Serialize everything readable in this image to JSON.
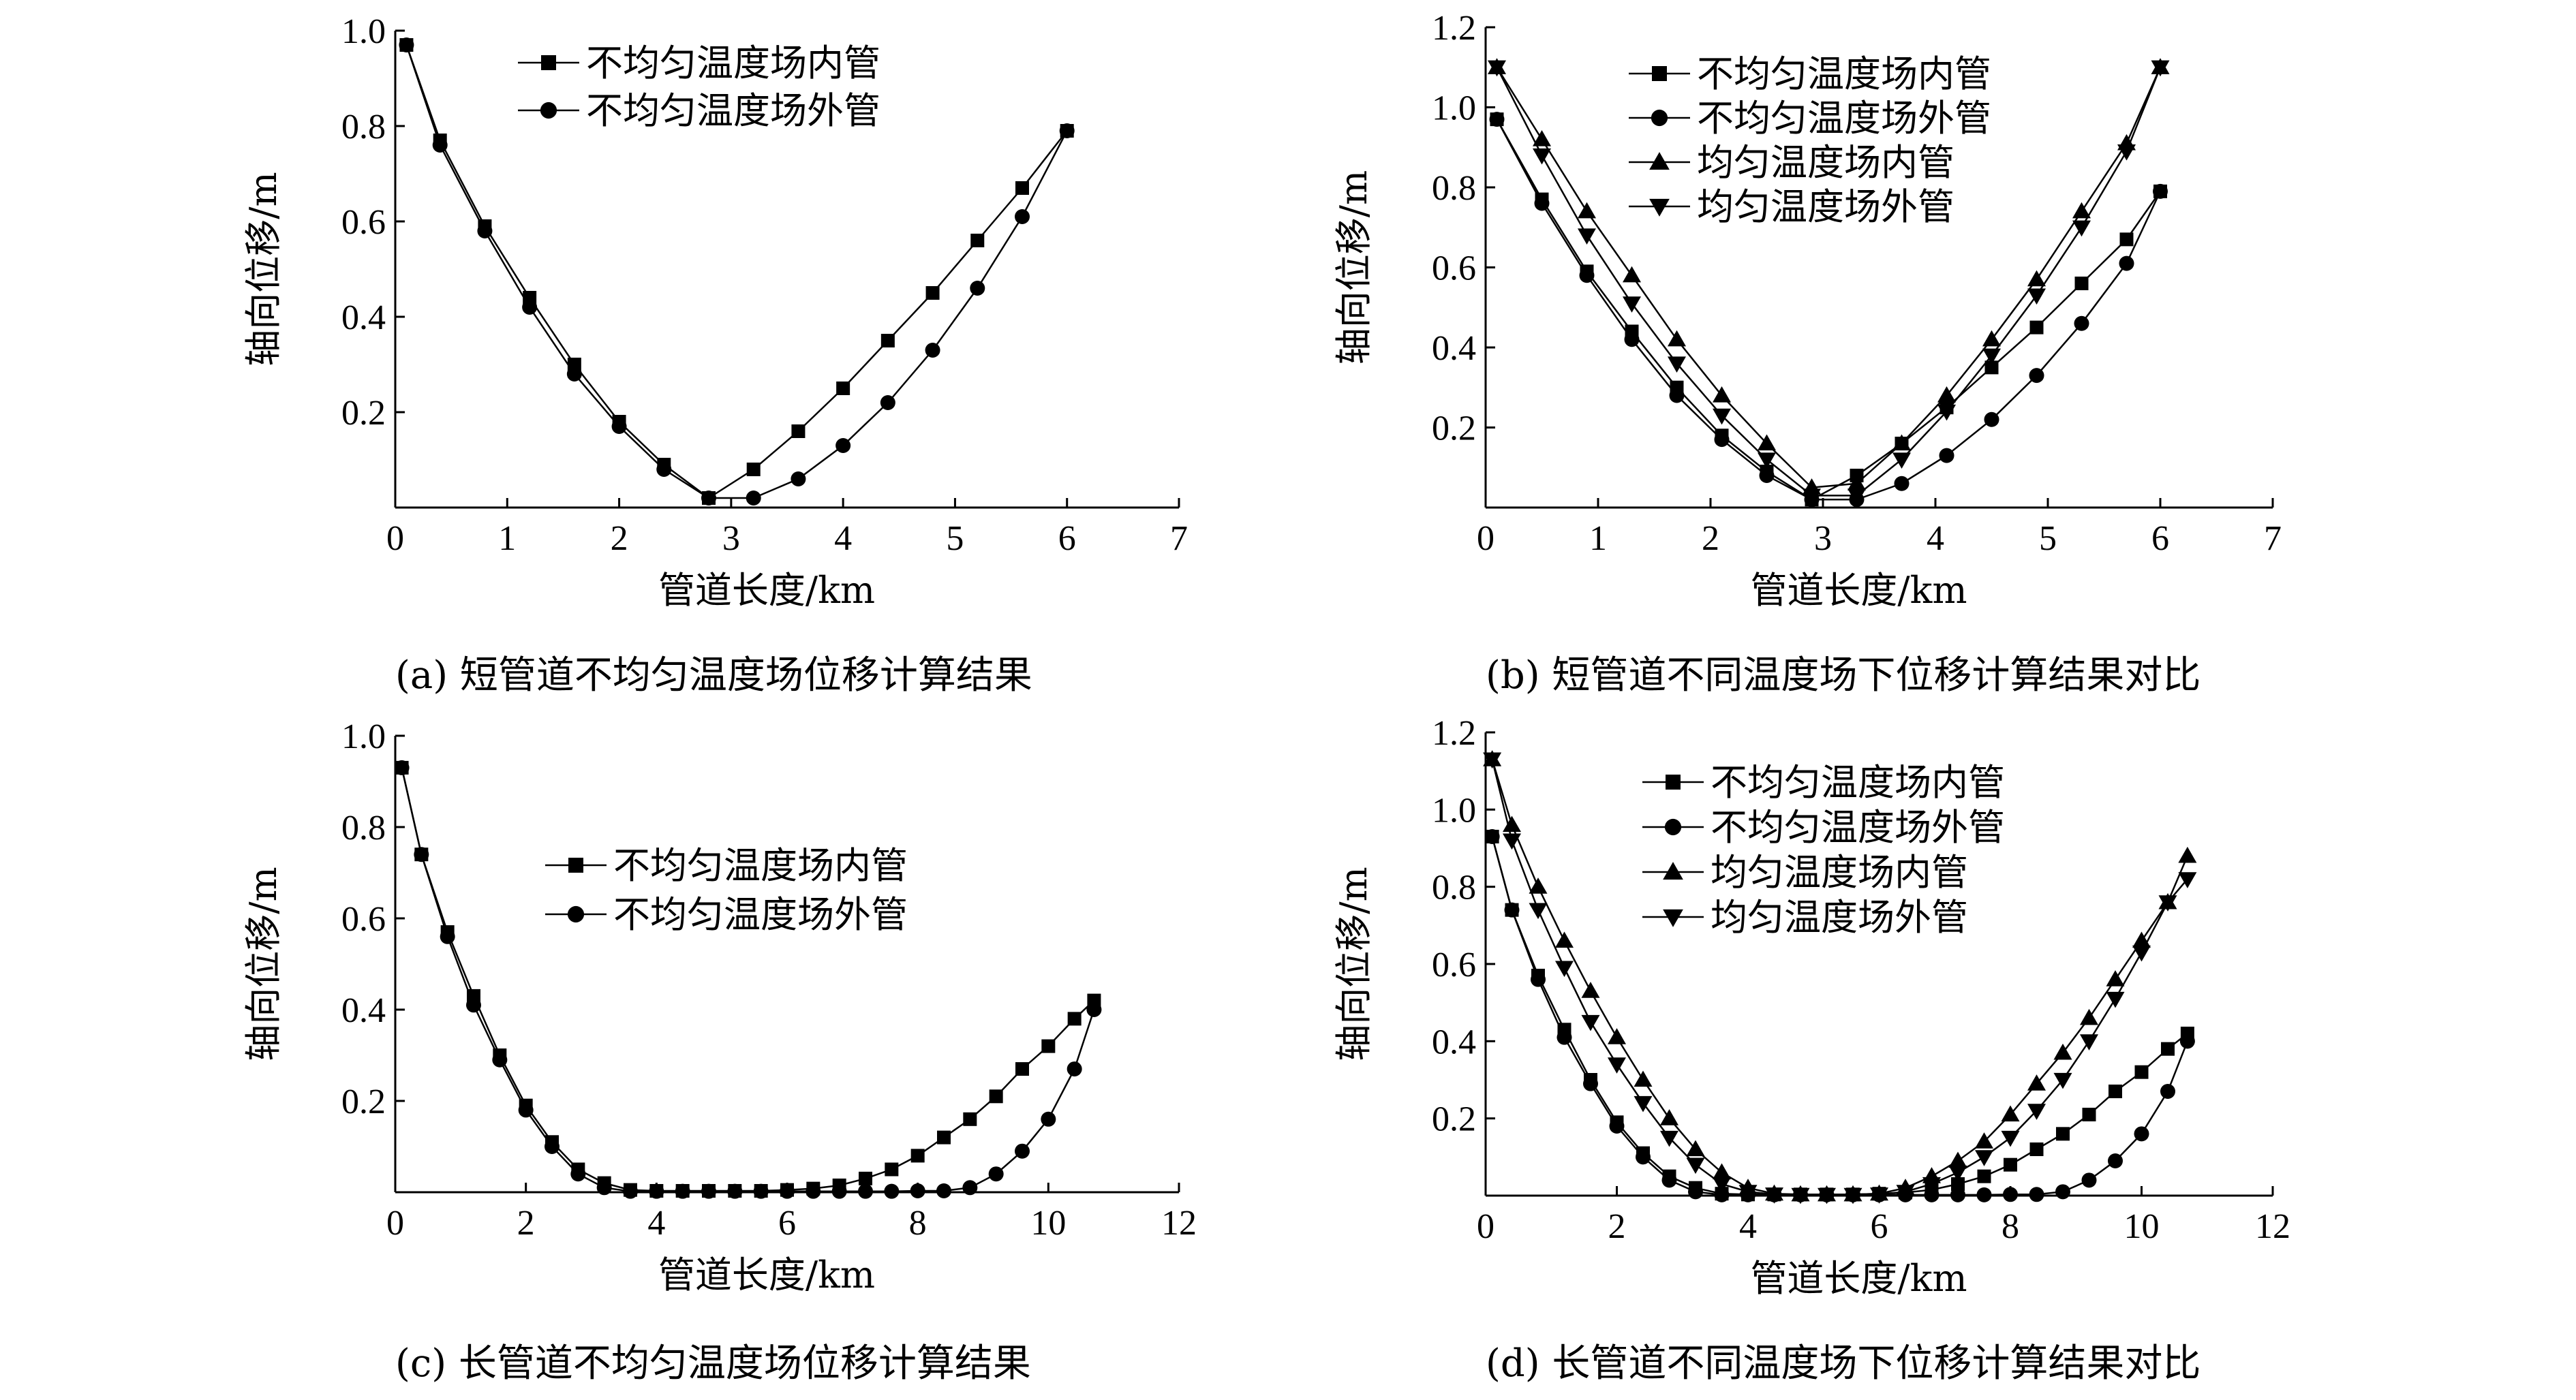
{
  "chart_data": [
    {
      "id": "a",
      "type": "line",
      "caption": "(a) 短管道不均匀温度场位移计算结果",
      "xlabel": "管道长度/km",
      "ylabel": "轴向位移/m",
      "xlim": [
        0,
        7
      ],
      "ylim": [
        0,
        1.0
      ],
      "xticks": [
        0,
        1,
        2,
        3,
        4,
        5,
        6,
        7
      ],
      "yticks": [
        0.2,
        0.4,
        0.6,
        0.8,
        1.0
      ],
      "xtick_labels": [
        "0",
        "1",
        "2",
        "3",
        "4",
        "5",
        "6",
        "7"
      ],
      "ytick_labels": [
        "0.2",
        "0.4",
        "0.6",
        "0.8",
        "1.0"
      ],
      "legend_position": "top-center",
      "series": [
        {
          "name": "不均匀温度场内管",
          "marker": "square",
          "x": [
            0.1,
            0.4,
            0.8,
            1.2,
            1.6,
            2.0,
            2.4,
            2.8,
            3.2,
            3.6,
            4.0,
            4.4,
            4.8,
            5.2,
            5.6,
            6.0
          ],
          "y": [
            0.97,
            0.77,
            0.59,
            0.44,
            0.3,
            0.18,
            0.09,
            0.02,
            0.08,
            0.16,
            0.25,
            0.35,
            0.45,
            0.56,
            0.67,
            0.79
          ]
        },
        {
          "name": "不均匀温度场外管",
          "marker": "circle",
          "x": [
            0.1,
            0.4,
            0.8,
            1.2,
            1.6,
            2.0,
            2.4,
            2.8,
            3.2,
            3.6,
            4.0,
            4.4,
            4.8,
            5.2,
            5.6,
            6.0
          ],
          "y": [
            0.97,
            0.76,
            0.58,
            0.42,
            0.28,
            0.17,
            0.08,
            0.02,
            0.02,
            0.06,
            0.13,
            0.22,
            0.33,
            0.46,
            0.61,
            0.79
          ]
        }
      ]
    },
    {
      "id": "b",
      "type": "line",
      "caption": "(b) 短管道不同温度场下位移计算结果对比",
      "xlabel": "管道长度/km",
      "ylabel": "轴向位移/m",
      "xlim": [
        0,
        7
      ],
      "ylim": [
        0,
        1.2
      ],
      "xticks": [
        0,
        1,
        2,
        3,
        4,
        5,
        6,
        7
      ],
      "yticks": [
        0.2,
        0.4,
        0.6,
        0.8,
        1.0,
        1.2
      ],
      "xtick_labels": [
        "0",
        "1",
        "2",
        "3",
        "4",
        "5",
        "6",
        "7"
      ],
      "ytick_labels": [
        "0.2",
        "0.4",
        "0.6",
        "0.8",
        "1.0",
        "1.2"
      ],
      "legend_position": "top-center",
      "series": [
        {
          "name": "不均匀温度场内管",
          "marker": "square",
          "x": [
            0.1,
            0.5,
            0.9,
            1.3,
            1.7,
            2.1,
            2.5,
            2.9,
            3.3,
            3.7,
            4.1,
            4.5,
            4.9,
            5.3,
            5.7,
            6.0
          ],
          "y": [
            0.97,
            0.77,
            0.59,
            0.44,
            0.3,
            0.18,
            0.09,
            0.02,
            0.08,
            0.16,
            0.25,
            0.35,
            0.45,
            0.56,
            0.67,
            0.79
          ]
        },
        {
          "name": "不均匀温度场外管",
          "marker": "circle",
          "x": [
            0.1,
            0.5,
            0.9,
            1.3,
            1.7,
            2.1,
            2.5,
            2.9,
            3.3,
            3.7,
            4.1,
            4.5,
            4.9,
            5.3,
            5.7,
            6.0
          ],
          "y": [
            0.97,
            0.76,
            0.58,
            0.42,
            0.28,
            0.17,
            0.08,
            0.02,
            0.02,
            0.06,
            0.13,
            0.22,
            0.33,
            0.46,
            0.61,
            0.79
          ]
        },
        {
          "name": "均匀温度场内管",
          "marker": "triangle-up",
          "x": [
            0.1,
            0.5,
            0.9,
            1.3,
            1.7,
            2.1,
            2.5,
            2.9,
            3.3,
            3.7,
            4.1,
            4.5,
            4.9,
            5.3,
            5.7,
            6.0
          ],
          "y": [
            1.1,
            0.92,
            0.74,
            0.58,
            0.42,
            0.28,
            0.16,
            0.05,
            0.06,
            0.16,
            0.28,
            0.42,
            0.57,
            0.74,
            0.91,
            1.1
          ]
        },
        {
          "name": "均匀温度场外管",
          "marker": "triangle-down",
          "x": [
            0.1,
            0.5,
            0.9,
            1.3,
            1.7,
            2.1,
            2.5,
            2.9,
            3.3,
            3.7,
            4.1,
            4.5,
            4.9,
            5.3,
            5.7,
            6.0
          ],
          "y": [
            1.1,
            0.88,
            0.68,
            0.51,
            0.36,
            0.23,
            0.12,
            0.03,
            0.03,
            0.12,
            0.24,
            0.38,
            0.53,
            0.7,
            0.89,
            1.1
          ]
        }
      ]
    },
    {
      "id": "c",
      "type": "line",
      "caption": "(c) 长管道不均匀温度场位移计算结果",
      "xlabel": "管道长度/km",
      "ylabel": "轴向位移/m",
      "xlim": [
        0,
        12
      ],
      "ylim": [
        0,
        1.0
      ],
      "xticks": [
        0,
        2,
        4,
        6,
        8,
        10,
        12
      ],
      "yticks": [
        0.2,
        0.4,
        0.6,
        0.8,
        1.0
      ],
      "xtick_labels": [
        "0",
        "2",
        "4",
        "6",
        "8",
        "10",
        "12"
      ],
      "ytick_labels": [
        "0.2",
        "0.4",
        "0.6",
        "0.8",
        "1.0"
      ],
      "legend_position": "center",
      "series": [
        {
          "name": "不均匀温度场内管",
          "marker": "square",
          "x": [
            0.1,
            0.4,
            0.8,
            1.2,
            1.6,
            2.0,
            2.4,
            2.8,
            3.2,
            3.6,
            4.0,
            4.4,
            4.8,
            5.2,
            5.6,
            6.0,
            6.4,
            6.8,
            7.2,
            7.6,
            8.0,
            8.4,
            8.8,
            9.2,
            9.6,
            10.0,
            10.4,
            10.7
          ],
          "y": [
            0.93,
            0.74,
            0.57,
            0.43,
            0.3,
            0.19,
            0.11,
            0.05,
            0.02,
            0.005,
            0.003,
            0.003,
            0.003,
            0.003,
            0.003,
            0.005,
            0.008,
            0.015,
            0.03,
            0.05,
            0.08,
            0.12,
            0.16,
            0.21,
            0.27,
            0.32,
            0.38,
            0.42
          ]
        },
        {
          "name": "不均匀温度场外管",
          "marker": "circle",
          "x": [
            0.1,
            0.4,
            0.8,
            1.2,
            1.6,
            2.0,
            2.4,
            2.8,
            3.2,
            3.6,
            4.0,
            4.4,
            4.8,
            5.2,
            5.6,
            6.0,
            6.4,
            6.8,
            7.2,
            7.6,
            8.0,
            8.4,
            8.8,
            9.2,
            9.6,
            10.0,
            10.4,
            10.7
          ],
          "y": [
            0.93,
            0.74,
            0.56,
            0.41,
            0.29,
            0.18,
            0.1,
            0.04,
            0.01,
            0.002,
            0.002,
            0.002,
            0.002,
            0.002,
            0.002,
            0.002,
            0.002,
            0.002,
            0.002,
            0.002,
            0.003,
            0.003,
            0.01,
            0.04,
            0.09,
            0.16,
            0.27,
            0.4
          ]
        }
      ]
    },
    {
      "id": "d",
      "type": "line",
      "caption": "(d) 长管道不同温度场下位移计算结果对比",
      "xlabel": "管道长度/km",
      "ylabel": "轴向位移/m",
      "xlim": [
        0,
        12
      ],
      "ylim": [
        0,
        1.2
      ],
      "xticks": [
        0,
        2,
        4,
        6,
        8,
        10,
        12
      ],
      "yticks": [
        0.2,
        0.4,
        0.6,
        0.8,
        1.0,
        1.2
      ],
      "xtick_labels": [
        "0",
        "2",
        "4",
        "6",
        "8",
        "10",
        "12"
      ],
      "ytick_labels": [
        "0.2",
        "0.4",
        "0.6",
        "0.8",
        "1.0",
        "1.2"
      ],
      "legend_position": "top-center",
      "series": [
        {
          "name": "不均匀温度场内管",
          "marker": "square",
          "x": [
            0.1,
            0.4,
            0.8,
            1.2,
            1.6,
            2.0,
            2.4,
            2.8,
            3.2,
            3.6,
            4.0,
            4.4,
            4.8,
            5.2,
            5.6,
            6.0,
            6.4,
            6.8,
            7.2,
            7.6,
            8.0,
            8.4,
            8.8,
            9.2,
            9.6,
            10.0,
            10.4,
            10.7
          ],
          "y": [
            0.93,
            0.74,
            0.57,
            0.43,
            0.3,
            0.19,
            0.11,
            0.05,
            0.02,
            0.005,
            0.003,
            0.003,
            0.003,
            0.003,
            0.003,
            0.005,
            0.008,
            0.015,
            0.03,
            0.05,
            0.08,
            0.12,
            0.16,
            0.21,
            0.27,
            0.32,
            0.38,
            0.42
          ]
        },
        {
          "name": "不均匀温度场外管",
          "marker": "circle",
          "x": [
            0.1,
            0.4,
            0.8,
            1.2,
            1.6,
            2.0,
            2.4,
            2.8,
            3.2,
            3.6,
            4.0,
            4.4,
            4.8,
            5.2,
            5.6,
            6.0,
            6.4,
            6.8,
            7.2,
            7.6,
            8.0,
            8.4,
            8.8,
            9.2,
            9.6,
            10.0,
            10.4,
            10.7
          ],
          "y": [
            0.93,
            0.74,
            0.56,
            0.41,
            0.29,
            0.18,
            0.1,
            0.04,
            0.01,
            0.002,
            0.002,
            0.002,
            0.002,
            0.002,
            0.002,
            0.002,
            0.002,
            0.002,
            0.002,
            0.002,
            0.003,
            0.003,
            0.01,
            0.04,
            0.09,
            0.16,
            0.27,
            0.4
          ]
        },
        {
          "name": "均匀温度场内管",
          "marker": "triangle-up",
          "x": [
            0.1,
            0.4,
            0.8,
            1.2,
            1.6,
            2.0,
            2.4,
            2.8,
            3.2,
            3.6,
            4.0,
            4.4,
            4.8,
            5.2,
            5.6,
            6.0,
            6.4,
            6.8,
            7.2,
            7.6,
            8.0,
            8.4,
            8.8,
            9.2,
            9.6,
            10.0,
            10.4,
            10.7
          ],
          "y": [
            1.13,
            0.96,
            0.8,
            0.66,
            0.53,
            0.41,
            0.3,
            0.2,
            0.12,
            0.06,
            0.02,
            0.005,
            0.003,
            0.003,
            0.003,
            0.005,
            0.02,
            0.05,
            0.09,
            0.14,
            0.21,
            0.29,
            0.37,
            0.46,
            0.56,
            0.66,
            0.76,
            0.88
          ]
        },
        {
          "name": "均匀温度场外管",
          "marker": "triangle-down",
          "x": [
            0.1,
            0.4,
            0.8,
            1.2,
            1.6,
            2.0,
            2.4,
            2.8,
            3.2,
            3.6,
            4.0,
            4.4,
            4.8,
            5.2,
            5.6,
            6.0,
            6.4,
            6.8,
            7.2,
            7.6,
            8.0,
            8.4,
            8.8,
            9.2,
            9.6,
            10.0,
            10.4,
            10.7
          ],
          "y": [
            1.13,
            0.92,
            0.74,
            0.59,
            0.45,
            0.34,
            0.24,
            0.15,
            0.08,
            0.03,
            0.01,
            0.003,
            0.002,
            0.002,
            0.002,
            0.003,
            0.01,
            0.03,
            0.06,
            0.1,
            0.15,
            0.22,
            0.3,
            0.4,
            0.51,
            0.63,
            0.76,
            0.82
          ]
        }
      ]
    }
  ]
}
